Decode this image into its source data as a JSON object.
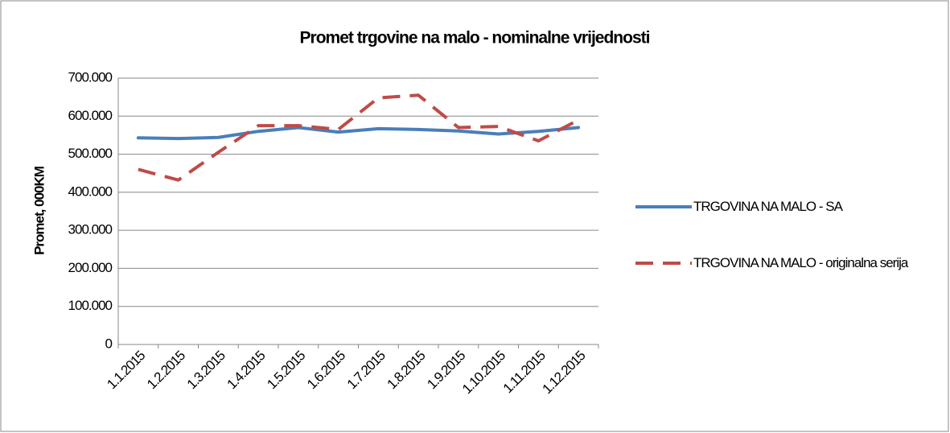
{
  "chart_data": {
    "type": "line",
    "title": "Promet trgovine na malo - nominalne vrijednosti",
    "y_label": "Promet, 000KM",
    "categories": [
      "1.1.2015",
      "1.2.2015",
      "1.3.2015",
      "1.4.2015",
      "1.5.2015",
      "1.6.2015",
      "1.7.2015",
      "1.8.2015",
      "1.9.2015",
      "1.10.2015",
      "1.11.2015",
      "1.12.2015"
    ],
    "series": [
      {
        "name": "TRGOVINA NA MALO - SA",
        "color": "#4a7ebb",
        "dash": false,
        "values": [
          543000,
          541000,
          544000,
          560000,
          570000,
          558000,
          567000,
          565000,
          561000,
          553000,
          560000,
          570000
        ]
      },
      {
        "name": "TRGOVINA NA MALO - originalna serija",
        "color": "#be4b48",
        "dash": true,
        "values": [
          460000,
          432000,
          505000,
          575000,
          575000,
          565000,
          648000,
          655000,
          570000,
          573000,
          535000,
          590000
        ]
      }
    ],
    "ylim": [
      0,
      700000
    ],
    "yticks": [
      0,
      {
        "value": 100000,
        "label": "100.000"
      },
      {
        "value": 200000,
        "label": "200.000"
      },
      {
        "value": 300000,
        "label": "300.000"
      },
      {
        "value": 400000,
        "label": "400.000"
      },
      {
        "value": 500000,
        "label": "500.000"
      },
      {
        "value": 600000,
        "label": "600.000"
      },
      {
        "value": 700000,
        "label": "700.000"
      }
    ],
    "grid": true,
    "legend": "right"
  }
}
